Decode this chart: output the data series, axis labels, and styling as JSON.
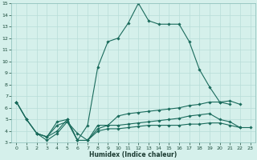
{
  "xlabel": "Humidex (Indice chaleur)",
  "x": [
    0,
    1,
    2,
    3,
    4,
    5,
    6,
    7,
    8,
    9,
    10,
    11,
    12,
    13,
    14,
    15,
    16,
    17,
    18,
    19,
    20,
    21,
    22,
    23
  ],
  "line1": [
    6.5,
    5.0,
    3.8,
    3.5,
    4.0,
    5.0,
    3.2,
    4.5,
    9.5,
    11.7,
    12.0,
    13.3,
    15.0,
    13.5,
    13.2,
    13.2,
    13.2,
    11.7,
    9.3,
    7.8,
    6.5,
    6.3,
    null,
    null
  ],
  "line2": [
    6.5,
    5.0,
    3.8,
    3.5,
    4.8,
    5.0,
    3.2,
    3.2,
    4.5,
    4.5,
    5.3,
    5.5,
    5.6,
    5.7,
    5.8,
    5.9,
    6.0,
    6.2,
    6.3,
    6.5,
    6.5,
    6.6,
    6.3,
    null
  ],
  "line3": [
    6.5,
    5.0,
    3.8,
    3.5,
    4.5,
    4.8,
    3.8,
    3.2,
    4.2,
    4.5,
    4.5,
    4.6,
    4.7,
    4.8,
    4.9,
    5.0,
    5.1,
    5.3,
    5.4,
    5.5,
    5.0,
    4.8,
    4.3,
    null
  ],
  "line4": [
    6.5,
    null,
    3.8,
    3.2,
    3.8,
    4.8,
    3.2,
    3.2,
    4.0,
    4.2,
    4.2,
    4.3,
    4.4,
    4.5,
    4.5,
    4.5,
    4.5,
    4.6,
    4.6,
    4.7,
    4.7,
    4.5,
    4.3,
    4.3
  ],
  "color": "#1a6b5c",
  "bg_color": "#d5f0eb",
  "grid_color": "#b8ddd8",
  "ylim": [
    3,
    15
  ],
  "xlim": [
    -0.5,
    23.5
  ],
  "yticks": [
    3,
    4,
    5,
    6,
    7,
    8,
    9,
    10,
    11,
    12,
    13,
    14,
    15
  ],
  "xticks": [
    0,
    1,
    2,
    3,
    4,
    5,
    6,
    7,
    8,
    9,
    10,
    11,
    12,
    13,
    14,
    15,
    16,
    17,
    18,
    19,
    20,
    21,
    22,
    23
  ]
}
